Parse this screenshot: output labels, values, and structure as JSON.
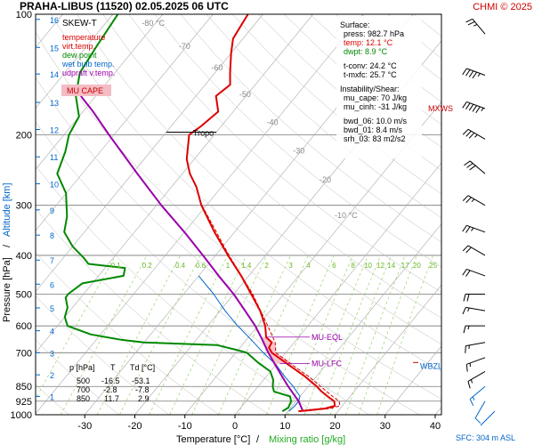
{
  "title": "PRAHA-LIBUS (11520)   02.05.2025 06 UTC",
  "copyright": "CHMI © 2025",
  "chart_data": {
    "type": "line",
    "title": "PRAHA-LIBUS (11520)   02.05.2025 06 UTC",
    "xlabel_temp": "Temperature [°C]",
    "xlabel_sep": "/",
    "xlabel_mix": "Mixing ratio [g/kg]",
    "ylabel_pressure": "Pressure [hPa]",
    "ylabel_sep": "/",
    "ylabel_altitude": "Altitude [km]",
    "xlim": [
      -35,
      45
    ],
    "ylim": [
      1000,
      100
    ],
    "y_scale": "log",
    "x_ticks": [
      -30,
      -20,
      -10,
      0,
      10,
      20,
      30,
      40
    ],
    "pressure_ticks": [
      100,
      200,
      300,
      400,
      500,
      600,
      700,
      850,
      925,
      1000
    ],
    "altitude_ticks": [
      {
        "km": "1",
        "p": 900
      },
      {
        "km": "2",
        "p": 795
      },
      {
        "km": "3",
        "p": 700
      },
      {
        "km": "4",
        "p": 617
      },
      {
        "km": "5",
        "p": 541
      },
      {
        "km": "6",
        "p": 472
      },
      {
        "km": "7",
        "p": 411
      },
      {
        "km": "8",
        "p": 356
      },
      {
        "km": "9",
        "p": 308
      },
      {
        "km": "10",
        "p": 265
      },
      {
        "km": "11",
        "p": 227
      },
      {
        "km": "12",
        "p": 194
      },
      {
        "km": "13",
        "p": 166
      },
      {
        "km": "14",
        "p": 141
      },
      {
        "km": "15",
        "p": 121
      },
      {
        "km": "16",
        "p": 103
      }
    ],
    "skew_isotherm_labels": [
      {
        "label": "-80 °C",
        "t": -80,
        "p": 107
      },
      {
        "label": "-70",
        "t": -70,
        "p": 122
      },
      {
        "label": "-60",
        "t": -60,
        "p": 138
      },
      {
        "label": "-50",
        "t": -50,
        "p": 161
      },
      {
        "label": "-40",
        "t": -40,
        "p": 189
      },
      {
        "label": "-30",
        "t": -30,
        "p": 223
      },
      {
        "label": "-20",
        "t": -20,
        "p": 263
      },
      {
        "label": "-10 °C",
        "t": -10,
        "p": 323
      }
    ],
    "mixing_ratio_labels": [
      "0.1",
      "0.2",
      "0.4",
      "0.6",
      "1",
      "1.4",
      "2",
      "3",
      "4",
      "6",
      "8",
      "10",
      "12",
      "14",
      "17",
      "20",
      "25"
    ],
    "mixing_ratio_values": [
      0.1,
      0.2,
      0.4,
      0.6,
      1,
      1.4,
      2,
      3,
      4,
      6,
      8,
      10,
      12,
      14,
      17,
      20,
      25
    ],
    "legend": [
      {
        "label": "SKEW-T",
        "color": "#000000"
      },
      {
        "label": "temperature",
        "color": "#dd0000"
      },
      {
        "label": "virt.temp.",
        "color": "#dd0000"
      },
      {
        "label": "dew point",
        "color": "#008800"
      },
      {
        "label": "wet bulb temp.",
        "color": "#0066cc"
      },
      {
        "label": "udpraft v.temp.",
        "color": "#9900aa"
      }
    ],
    "mu_cape_label": "MU CAPE",
    "surface_info": [
      "Surface:",
      "press: 982.7 hPa",
      "temp: 12.1 °C",
      "dwpt: 8.9 °C",
      "",
      "t-conv: 24.2 °C",
      "t-mxfc: 25.7 °C",
      "",
      "Instability/Shear:",
      "mu_cape: 70 J/kg",
      "mu_cinh: -31 J/kg",
      "",
      "bwd_06: 10.0 m/s",
      "bwd_01: 8.4 m/s",
      "srh_03: 83 m2/s2"
    ],
    "table": {
      "headers": [
        "p [hPa]",
        "T",
        "Td [°C]"
      ],
      "rows": [
        [
          "500",
          "-16.5",
          "-53.1"
        ],
        [
          "700",
          "-2.8",
          "-7.8"
        ],
        [
          "850",
          "11.7",
          "2.9"
        ]
      ]
    },
    "annotations": {
      "tropo": "Tropo",
      "tropo_p": 197,
      "mu_eql": "MU-EQL",
      "mu_eql_p": 640,
      "mu_lfc": "MU-LFC",
      "mu_lfc_p": 745,
      "mxws": "MXWS",
      "mxws_p": 172,
      "wbzl": "WBZL",
      "wbzl_p": 752
    },
    "sfc_label": "SFC: 304 m ASL",
    "temperature": [
      {
        "p": 980,
        "t": 12.1
      },
      {
        "p": 965,
        "t": 17.0
      },
      {
        "p": 950,
        "t": 18.5
      },
      {
        "p": 925,
        "t": 17.6
      },
      {
        "p": 900,
        "t": 15.5
      },
      {
        "p": 875,
        "t": 13.5
      },
      {
        "p": 850,
        "t": 11.7
      },
      {
        "p": 800,
        "t": 7.5
      },
      {
        "p": 750,
        "t": 2.5
      },
      {
        "p": 700,
        "t": -2.8
      },
      {
        "p": 680,
        "t": -4.2
      },
      {
        "p": 660,
        "t": -4.5
      },
      {
        "p": 640,
        "t": -6.5
      },
      {
        "p": 600,
        "t": -8.5
      },
      {
        "p": 550,
        "t": -12.0
      },
      {
        "p": 500,
        "t": -16.5
      },
      {
        "p": 450,
        "t": -21.5
      },
      {
        "p": 400,
        "t": -27.5
      },
      {
        "p": 350,
        "t": -34.0
      },
      {
        "p": 300,
        "t": -41.0
      },
      {
        "p": 270,
        "t": -45.0
      },
      {
        "p": 250,
        "t": -48.5
      },
      {
        "p": 230,
        "t": -51.5
      },
      {
        "p": 200,
        "t": -55.0
      },
      {
        "p": 190,
        "t": -54.0
      },
      {
        "p": 175,
        "t": -53.0
      },
      {
        "p": 160,
        "t": -56.0
      },
      {
        "p": 150,
        "t": -55.0
      },
      {
        "p": 140,
        "t": -57.0
      },
      {
        "p": 125,
        "t": -60.0
      },
      {
        "p": 115,
        "t": -62.0
      },
      {
        "p": 100,
        "t": -63.0
      }
    ],
    "virtual_temperature": [
      {
        "p": 980,
        "t": 13.2
      },
      {
        "p": 965,
        "t": 18.0
      },
      {
        "p": 950,
        "t": 19.5
      },
      {
        "p": 925,
        "t": 18.6
      },
      {
        "p": 900,
        "t": 16.5
      },
      {
        "p": 850,
        "t": 12.5
      },
      {
        "p": 800,
        "t": 8.2
      },
      {
        "p": 750,
        "t": 3.2
      },
      {
        "p": 700,
        "t": -2.0
      },
      {
        "p": 660,
        "t": -3.8
      },
      {
        "p": 600,
        "t": -8.0
      },
      {
        "p": 500,
        "t": -16.2
      },
      {
        "p": 400,
        "t": -27.3
      },
      {
        "p": 300,
        "t": -40.9
      }
    ],
    "dew_point": [
      {
        "p": 980,
        "t": 8.9
      },
      {
        "p": 960,
        "t": 9.5
      },
      {
        "p": 925,
        "t": 9.0
      },
      {
        "p": 900,
        "t": 8.0
      },
      {
        "p": 875,
        "t": 4.0
      },
      {
        "p": 850,
        "t": 2.9
      },
      {
        "p": 820,
        "t": 2.0
      },
      {
        "p": 780,
        "t": 0.0
      },
      {
        "p": 740,
        "t": -4.0
      },
      {
        "p": 700,
        "t": -7.8
      },
      {
        "p": 690,
        "t": -10.0
      },
      {
        "p": 670,
        "t": -15.0
      },
      {
        "p": 660,
        "t": -30.0
      },
      {
        "p": 650,
        "t": -35.0
      },
      {
        "p": 630,
        "t": -42.0
      },
      {
        "p": 600,
        "t": -48.0
      },
      {
        "p": 570,
        "t": -50.0
      },
      {
        "p": 540,
        "t": -51.0
      },
      {
        "p": 510,
        "t": -53.0
      },
      {
        "p": 500,
        "t": -53.1
      },
      {
        "p": 470,
        "t": -52.0
      },
      {
        "p": 450,
        "t": -45.0
      },
      {
        "p": 430,
        "t": -46.0
      },
      {
        "p": 420,
        "t": -54.0
      },
      {
        "p": 405,
        "t": -56.0
      },
      {
        "p": 380,
        "t": -60.0
      },
      {
        "p": 350,
        "t": -64.0
      },
      {
        "p": 320,
        "t": -66.0
      },
      {
        "p": 280,
        "t": -70.0
      },
      {
        "p": 250,
        "t": -75.0
      },
      {
        "p": 220,
        "t": -77.0
      },
      {
        "p": 200,
        "t": -79.0
      },
      {
        "p": 180,
        "t": -80.0
      },
      {
        "p": 160,
        "t": -84.0
      },
      {
        "p": 140,
        "t": -87.0
      },
      {
        "p": 120,
        "t": -88.0
      },
      {
        "p": 100,
        "t": -89.0
      }
    ],
    "wet_bulb": [
      {
        "p": 980,
        "t": 10.2
      },
      {
        "p": 950,
        "t": 10.5
      },
      {
        "p": 925,
        "t": 10.5
      },
      {
        "p": 900,
        "t": 10.0
      },
      {
        "p": 850,
        "t": 7.0
      },
      {
        "p": 800,
        "t": 3.5
      },
      {
        "p": 750,
        "t": 0.0
      },
      {
        "p": 700,
        "t": -4.5
      },
      {
        "p": 650,
        "t": -9.0
      },
      {
        "p": 600,
        "t": -14.0
      },
      {
        "p": 550,
        "t": -19.0
      },
      {
        "p": 500,
        "t": -24.0
      },
      {
        "p": 450,
        "t": -30.0
      }
    ],
    "updraft_virtual_temperature": [
      {
        "p": 980,
        "t": 13.0
      },
      {
        "p": 925,
        "t": 10.5
      },
      {
        "p": 850,
        "t": 6.0
      },
      {
        "p": 800,
        "t": 3.0
      },
      {
        "p": 745,
        "t": -0.5
      },
      {
        "p": 700,
        "t": -3.5
      },
      {
        "p": 640,
        "t": -7.5
      },
      {
        "p": 600,
        "t": -10.5
      },
      {
        "p": 550,
        "t": -15.0
      },
      {
        "p": 500,
        "t": -20.0
      },
      {
        "p": 450,
        "t": -26.0
      },
      {
        "p": 400,
        "t": -32.5
      },
      {
        "p": 350,
        "t": -40.0
      },
      {
        "p": 300,
        "t": -49.0
      },
      {
        "p": 250,
        "t": -59.0
      },
      {
        "p": 200,
        "t": -71.0
      },
      {
        "p": 175,
        "t": -78.0
      },
      {
        "p": 160,
        "t": -83.0
      }
    ],
    "wind_profile": [
      {
        "p": 112,
        "dir": 320,
        "kt": 25
      },
      {
        "p": 142,
        "dir": 290,
        "kt": 45
      },
      {
        "p": 172,
        "dir": 290,
        "kt": 55
      },
      {
        "p": 205,
        "dir": 300,
        "kt": 35
      },
      {
        "p": 250,
        "dir": 310,
        "kt": 30
      },
      {
        "p": 300,
        "dir": 300,
        "kt": 25
      },
      {
        "p": 350,
        "dir": 290,
        "kt": 25
      },
      {
        "p": 400,
        "dir": 300,
        "kt": 20
      },
      {
        "p": 450,
        "dir": 290,
        "kt": 20
      },
      {
        "p": 500,
        "dir": 270,
        "kt": 20
      },
      {
        "p": 550,
        "dir": 280,
        "kt": 15
      },
      {
        "p": 600,
        "dir": 270,
        "kt": 15
      },
      {
        "p": 660,
        "dir": 260,
        "kt": 15
      },
      {
        "p": 720,
        "dir": 250,
        "kt": 15
      },
      {
        "p": 780,
        "dir": 240,
        "kt": 15
      },
      {
        "p": 850,
        "dir": 230,
        "kt": 15
      },
      {
        "p": 925,
        "dir": 210,
        "kt": 10
      }
    ]
  }
}
